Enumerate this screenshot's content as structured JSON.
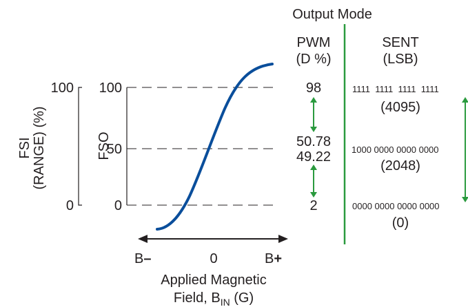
{
  "header": {
    "output_mode": "Output Mode"
  },
  "fsi_axis": {
    "label_line1": "FSI",
    "label_line2": "(RANGE) (%)",
    "tick_top": "100",
    "tick_bottom": "0"
  },
  "fso_axis": {
    "label": "FSO",
    "tick_top": "100",
    "tick_mid": "50",
    "tick_bottom": "0"
  },
  "pwm": {
    "title_line1": "PWM",
    "title_line2": "(D %)",
    "val_top": "98",
    "val_mid_high": "50.78",
    "val_mid_low": "49.22",
    "val_bottom": "2"
  },
  "sent": {
    "title_line1": "SENT",
    "title_line2": "(LSB)",
    "bits_top": "1111  1111  1111  1111",
    "dec_top": "(4095)",
    "bits_mid": "1000 0000 0000 0000",
    "dec_mid": "(2048)",
    "bits_bottom": "0000 0000 0000 0000",
    "dec_bottom": "(0)"
  },
  "x_axis": {
    "label_left": "B",
    "label_left_sign": "–",
    "label_center": "0",
    "label_right": "B",
    "label_right_sign": "+",
    "caption_line1": "Applied Magnetic",
    "caption_line2_prefix": "Field, B",
    "caption_line2_sub": "IN",
    "caption_line2_suffix": " (G)"
  },
  "colors": {
    "curve": "#0a4e9b",
    "accent": "#2a9a3e",
    "ink": "#231f20"
  }
}
